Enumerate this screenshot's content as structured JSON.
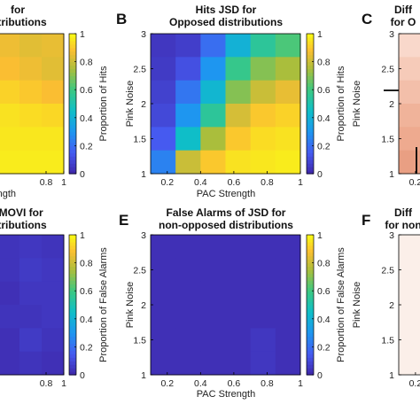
{
  "chart_data": [
    {
      "type": "heatmap",
      "panel": "A",
      "title": [
        "for",
        "istributions"
      ],
      "xlabel": "ngth",
      "ylabel": "",
      "x_ticks": [
        "0.8",
        "1"
      ],
      "xlim": [
        0,
        1
      ],
      "ylim": [
        1,
        3
      ],
      "colorbar_label": "Proportion of Hits",
      "colorbar_ticks": [
        "0",
        "0.2",
        "0.4",
        "0.6",
        "0.8",
        "1"
      ],
      "clim": [
        0,
        1
      ],
      "values": [
        [
          0.87,
          0.86,
          0.84,
          0.85
        ],
        [
          0.9,
          0.88,
          0.86,
          0.84
        ],
        [
          0.93,
          0.92,
          0.9,
          0.88
        ],
        [
          0.95,
          0.95,
          0.94,
          0.93
        ],
        [
          0.96,
          0.96,
          0.96,
          0.96
        ],
        [
          0.97,
          0.97,
          0.97,
          0.97
        ]
      ]
    },
    {
      "type": "heatmap",
      "panel": "B",
      "title": [
        "Hits JSD for",
        "Opposed distributions"
      ],
      "xlabel": "PAC Strength",
      "ylabel": "Pink Noise",
      "x_ticks": [
        "0.2",
        "0.4",
        "0.6",
        "0.8",
        "1"
      ],
      "y_ticks": [
        "1",
        "1.5",
        "2",
        "2.5",
        "3"
      ],
      "xlim": [
        0.1,
        1.0
      ],
      "ylim": [
        1,
        3
      ],
      "colorbar_label": "Proportion of Hits",
      "colorbar_ticks": [
        "0",
        "0.2",
        "0.4",
        "0.6",
        "0.8",
        "1"
      ],
      "clim": [
        0,
        1
      ],
      "values": [
        [
          0.05,
          0.07,
          0.2,
          0.4,
          0.55,
          0.62
        ],
        [
          0.06,
          0.12,
          0.3,
          0.58,
          0.7,
          0.75
        ],
        [
          0.08,
          0.22,
          0.42,
          0.7,
          0.8,
          0.85
        ],
        [
          0.1,
          0.3,
          0.55,
          0.82,
          0.9,
          0.92
        ],
        [
          0.15,
          0.45,
          0.75,
          0.9,
          0.94,
          0.95
        ],
        [
          0.25,
          0.8,
          0.9,
          0.95,
          0.96,
          0.97
        ]
      ]
    },
    {
      "type": "heatmap",
      "panel": "C",
      "title": [
        "Diff",
        "for O"
      ],
      "xlabel": "",
      "ylabel": "Pink Noise",
      "x_ticks": [
        "0.2"
      ],
      "y_ticks": [
        "1",
        "1.5",
        "2",
        "2.5",
        "3"
      ],
      "xlim": [
        0.1,
        1.0
      ],
      "ylim": [
        1,
        3
      ]
    },
    {
      "type": "heatmap",
      "panel": "D",
      "title": [
        "f MOVI for",
        "istributions"
      ],
      "xlabel": "",
      "ylabel": "",
      "x_ticks": [
        "0.8",
        "1"
      ],
      "xlim": [
        0,
        1
      ],
      "ylim": [
        1,
        3
      ],
      "colorbar_label": "Proportion of False Alarms",
      "colorbar_ticks": [
        "0",
        "0.2",
        "0.4",
        "0.6",
        "0.8",
        "1"
      ],
      "clim": [
        0,
        1
      ],
      "values": [
        [
          0.03,
          0.04,
          0.05,
          0.04
        ],
        [
          0.03,
          0.04,
          0.06,
          0.05
        ],
        [
          0.02,
          0.03,
          0.05,
          0.05
        ],
        [
          0.03,
          0.04,
          0.04,
          0.05
        ],
        [
          0.02,
          0.03,
          0.06,
          0.04
        ],
        [
          0.02,
          0.03,
          0.04,
          0.03
        ]
      ]
    },
    {
      "type": "heatmap",
      "panel": "E",
      "title": [
        "False Alarms of JSD for",
        "non-opposed distributions"
      ],
      "xlabel": "PAC Strength",
      "ylabel": "Pink Noise",
      "x_ticks": [
        "0.2",
        "0.4",
        "0.6",
        "0.8",
        "1"
      ],
      "y_ticks": [
        "1",
        "1.5",
        "2",
        "2.5",
        "3"
      ],
      "xlim": [
        0.1,
        1.0
      ],
      "ylim": [
        1,
        3
      ],
      "colorbar_label": "Proportion of False Alarms",
      "colorbar_ticks": [
        "0",
        "0.2",
        "0.4",
        "0.6",
        "0.8",
        "1"
      ],
      "clim": [
        0,
        1
      ],
      "values": [
        [
          0.03,
          0.03,
          0.03,
          0.03,
          0.03,
          0.03
        ],
        [
          0.03,
          0.03,
          0.03,
          0.03,
          0.03,
          0.03
        ],
        [
          0.03,
          0.03,
          0.03,
          0.03,
          0.03,
          0.03
        ],
        [
          0.03,
          0.03,
          0.03,
          0.03,
          0.03,
          0.03
        ],
        [
          0.03,
          0.03,
          0.03,
          0.03,
          0.05,
          0.03
        ],
        [
          0.03,
          0.03,
          0.03,
          0.03,
          0.05,
          0.03
        ]
      ]
    },
    {
      "type": "heatmap",
      "panel": "F",
      "title": [
        "Diff",
        "for non"
      ],
      "xlabel": "",
      "ylabel": "Pink Noise",
      "x_ticks": [
        "0.2"
      ],
      "y_ticks": [
        "1",
        "1.5",
        "2",
        "2.5",
        "3"
      ],
      "xlim": [
        0.1,
        1.0
      ],
      "ylim": [
        1,
        3
      ]
    }
  ]
}
